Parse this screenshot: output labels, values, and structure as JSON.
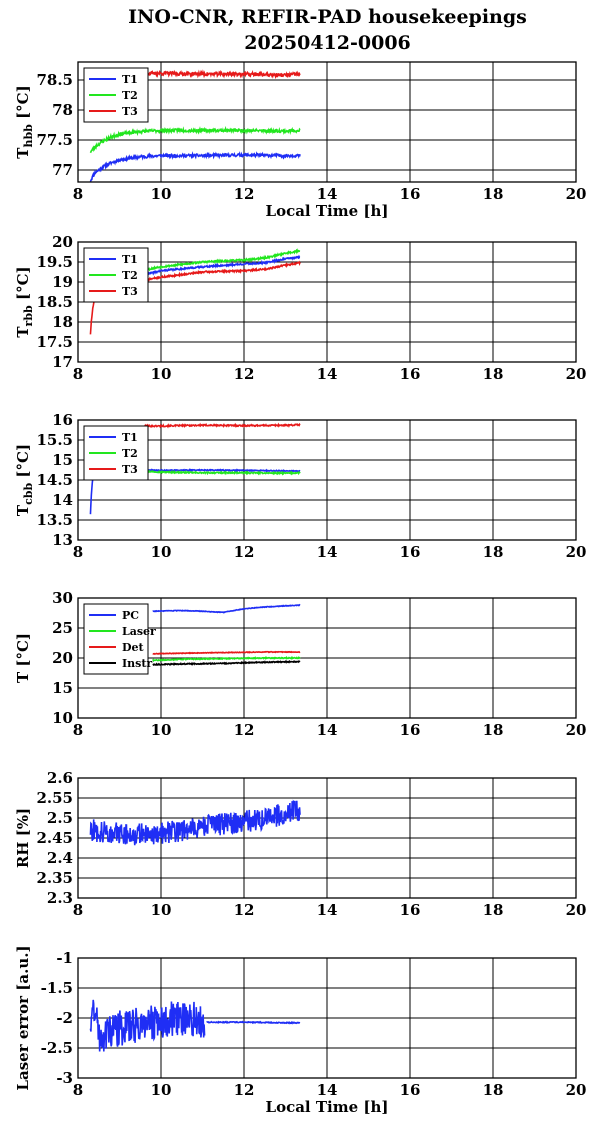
{
  "title": "INO-CNR, REFIR-PAD housekeepings",
  "subtitle": "20250412-0006",
  "colors": {
    "blue": "#1f2ef5",
    "green": "#22e61f",
    "red": "#e61a1a",
    "black": "#000000"
  },
  "chart_data": [
    {
      "type": "line",
      "ylabel_main": "T",
      "ylabel_sub": "hbb",
      "ylabel_unit": " [°C]",
      "xlabel": "Local Time [h]",
      "xlim": [
        8,
        20
      ],
      "ylim": [
        76.8,
        78.8
      ],
      "xticks": [
        "8",
        "10",
        "12",
        "14",
        "16",
        "18",
        "20"
      ],
      "yticks": [
        {
          "v": 77,
          "label": "77"
        },
        {
          "v": 77.5,
          "label": "77.5"
        },
        {
          "v": 78,
          "label": "78"
        },
        {
          "v": 78.5,
          "label": "78.5"
        }
      ],
      "grid": true,
      "legend_position": "top-left",
      "series": [
        {
          "name": "T1",
          "color": "#1f2ef5",
          "noise": 0.025,
          "seed": 11,
          "points": [
            [
              8.3,
              76.82
            ],
            [
              8.4,
              76.95
            ],
            [
              8.6,
              77.05
            ],
            [
              8.8,
              77.12
            ],
            [
              9.0,
              77.17
            ],
            [
              9.5,
              77.22
            ],
            [
              10.0,
              77.24
            ],
            [
              11.0,
              77.24
            ],
            [
              12.0,
              77.25
            ],
            [
              13.0,
              77.24
            ],
            [
              13.35,
              77.24
            ]
          ]
        },
        {
          "name": "T2",
          "color": "#22e61f",
          "noise": 0.025,
          "seed": 23,
          "points": [
            [
              8.3,
              77.3
            ],
            [
              8.4,
              77.38
            ],
            [
              8.6,
              77.48
            ],
            [
              8.8,
              77.55
            ],
            [
              9.0,
              77.6
            ],
            [
              9.5,
              77.64
            ],
            [
              10.0,
              77.66
            ],
            [
              11.0,
              77.66
            ],
            [
              12.0,
              77.66
            ],
            [
              13.0,
              77.65
            ],
            [
              13.35,
              77.66
            ]
          ]
        },
        {
          "name": "T3",
          "color": "#e61a1a",
          "noise": 0.03,
          "seed": 37,
          "points": [
            [
              9.0,
              78.6
            ],
            [
              10.0,
              78.61
            ],
            [
              11.0,
              78.6
            ],
            [
              12.0,
              78.6
            ],
            [
              13.0,
              78.58
            ],
            [
              13.35,
              78.6
            ]
          ]
        }
      ]
    },
    {
      "type": "line",
      "ylabel_main": "T",
      "ylabel_sub": "rbb",
      "ylabel_unit": " [°C]",
      "xlabel": "",
      "xlim": [
        8,
        20
      ],
      "ylim": [
        17,
        20
      ],
      "xticks": [
        "8",
        "10",
        "12",
        "14",
        "16",
        "18",
        "20"
      ],
      "yticks": [
        {
          "v": 17,
          "label": "17"
        },
        {
          "v": 17.5,
          "label": "17.5"
        },
        {
          "v": 18,
          "label": "18"
        },
        {
          "v": 18.5,
          "label": "18.5"
        },
        {
          "v": 19,
          "label": "19"
        },
        {
          "v": 19.5,
          "label": "19.5"
        },
        {
          "v": 20,
          "label": "20"
        }
      ],
      "grid": true,
      "legend_position": "top-left",
      "series": [
        {
          "name": "T1",
          "color": "#1f2ef5",
          "noise": 0.02,
          "seed": 41,
          "points": [
            [
              9.6,
              19.18
            ],
            [
              10.0,
              19.28
            ],
            [
              11.0,
              19.38
            ],
            [
              12.0,
              19.45
            ],
            [
              12.5,
              19.48
            ],
            [
              13.0,
              19.58
            ],
            [
              13.35,
              19.62
            ]
          ]
        },
        {
          "name": "T2",
          "color": "#22e61f",
          "noise": 0.02,
          "seed": 53,
          "points": [
            [
              9.6,
              19.3
            ],
            [
              10.0,
              19.38
            ],
            [
              11.0,
              19.5
            ],
            [
              12.0,
              19.55
            ],
            [
              12.5,
              19.6
            ],
            [
              13.0,
              19.72
            ],
            [
              13.35,
              19.78
            ]
          ]
        },
        {
          "name": "T3",
          "color": "#e61a1a",
          "noise": 0.02,
          "seed": 67,
          "points": [
            [
              8.3,
              17.7
            ],
            [
              8.32,
              18.0
            ],
            [
              8.35,
              18.3
            ],
            [
              8.38,
              18.5
            ],
            [
              8.4,
              18.55
            ]
          ]
        },
        {
          "name": "",
          "color": "#e61a1a",
          "noise": 0.02,
          "seed": 71,
          "points": [
            [
              9.6,
              19.05
            ],
            [
              10.0,
              19.12
            ],
            [
              11.0,
              19.25
            ],
            [
              12.0,
              19.28
            ],
            [
              12.5,
              19.32
            ],
            [
              13.0,
              19.42
            ],
            [
              13.35,
              19.48
            ]
          ]
        }
      ]
    },
    {
      "type": "line",
      "ylabel_main": "T",
      "ylabel_sub": "cbb",
      "ylabel_unit": " [°C]",
      "xlabel": "",
      "xlim": [
        8,
        20
      ],
      "ylim": [
        13,
        16
      ],
      "xticks": [
        "8",
        "10",
        "12",
        "14",
        "16",
        "18",
        "20"
      ],
      "yticks": [
        {
          "v": 13,
          "label": "13"
        },
        {
          "v": 13.5,
          "label": "13.5"
        },
        {
          "v": 14,
          "label": "14"
        },
        {
          "v": 14.5,
          "label": "14.5"
        },
        {
          "v": 15,
          "label": "15"
        },
        {
          "v": 15.5,
          "label": "15.5"
        },
        {
          "v": 16,
          "label": "16"
        }
      ],
      "grid": true,
      "legend_position": "top-left",
      "series": [
        {
          "name": "T1",
          "color": "#1f2ef5",
          "noise": 0.012,
          "seed": 83,
          "points": [
            [
              8.3,
              13.65
            ],
            [
              8.32,
              14.1
            ],
            [
              8.35,
              14.5
            ],
            [
              8.4,
              14.7
            ]
          ]
        },
        {
          "name": "",
          "color": "#1f2ef5",
          "noise": 0.012,
          "seed": 89,
          "points": [
            [
              9.6,
              14.75
            ],
            [
              10.0,
              14.74
            ],
            [
              11.0,
              14.75
            ],
            [
              12.0,
              14.74
            ],
            [
              13.0,
              14.73
            ],
            [
              13.35,
              14.72
            ]
          ]
        },
        {
          "name": "T2",
          "color": "#22e61f",
          "noise": 0.015,
          "seed": 97,
          "points": [
            [
              9.6,
              14.72
            ],
            [
              10.0,
              14.7
            ],
            [
              11.0,
              14.68
            ],
            [
              12.0,
              14.68
            ],
            [
              13.0,
              14.67
            ],
            [
              13.35,
              14.68
            ]
          ]
        },
        {
          "name": "T3",
          "color": "#e61a1a",
          "noise": 0.018,
          "seed": 101,
          "points": [
            [
              9.6,
              15.85
            ],
            [
              10.0,
              15.85
            ],
            [
              11.0,
              15.87
            ],
            [
              12.0,
              15.86
            ],
            [
              13.0,
              15.87
            ],
            [
              13.35,
              15.88
            ]
          ]
        }
      ]
    },
    {
      "type": "line",
      "ylabel_main": "T [°C]",
      "ylabel_sub": "",
      "ylabel_unit": "",
      "xlabel": "",
      "xlim": [
        8,
        20
      ],
      "ylim": [
        10,
        30
      ],
      "xticks": [
        "8",
        "10",
        "12",
        "14",
        "16",
        "18",
        "20"
      ],
      "yticks": [
        {
          "v": 10,
          "label": "10"
        },
        {
          "v": 15,
          "label": "15"
        },
        {
          "v": 20,
          "label": "20"
        },
        {
          "v": 25,
          "label": "25"
        },
        {
          "v": 30,
          "label": "30"
        }
      ],
      "grid": true,
      "legend_position": "top-left",
      "series": [
        {
          "name": "PC",
          "color": "#1f2ef5",
          "noise": 0.05,
          "seed": 103,
          "points": [
            [
              9.8,
              27.8
            ],
            [
              10.5,
              27.9
            ],
            [
              11.0,
              27.8
            ],
            [
              11.5,
              27.6
            ],
            [
              12.0,
              28.2
            ],
            [
              12.5,
              28.5
            ],
            [
              13.0,
              28.7
            ],
            [
              13.35,
              28.8
            ]
          ]
        },
        {
          "name": "Laser",
          "color": "#22e61f",
          "noise": 0.08,
          "seed": 107,
          "points": [
            [
              9.8,
              19.6
            ],
            [
              10.5,
              19.8
            ],
            [
              11.5,
              19.9
            ],
            [
              12.5,
              20.0
            ],
            [
              13.35,
              20.0
            ]
          ]
        },
        {
          "name": "Det",
          "color": "#e61a1a",
          "noise": 0.05,
          "seed": 109,
          "points": [
            [
              9.8,
              20.7
            ],
            [
              10.5,
              20.8
            ],
            [
              11.5,
              20.9
            ],
            [
              12.5,
              21.0
            ],
            [
              13.35,
              21.0
            ]
          ]
        },
        {
          "name": "Instr",
          "color": "#000000",
          "noise": 0.08,
          "seed": 113,
          "points": [
            [
              9.8,
              18.9
            ],
            [
              10.5,
              19.0
            ],
            [
              11.5,
              19.1
            ],
            [
              12.5,
              19.3
            ],
            [
              13.35,
              19.4
            ]
          ]
        }
      ]
    },
    {
      "type": "line",
      "ylabel_main": "RH [%]",
      "ylabel_sub": "",
      "ylabel_unit": "",
      "xlabel": "",
      "xlim": [
        8,
        20
      ],
      "ylim": [
        2.3,
        2.6
      ],
      "xticks": [
        "8",
        "10",
        "12",
        "14",
        "16",
        "18",
        "20"
      ],
      "yticks": [
        {
          "v": 2.3,
          "label": "2.3"
        },
        {
          "v": 2.35,
          "label": "2.35"
        },
        {
          "v": 2.4,
          "label": "2.4"
        },
        {
          "v": 2.45,
          "label": "2.45"
        },
        {
          "v": 2.5,
          "label": "2.5"
        },
        {
          "v": 2.55,
          "label": "2.55"
        },
        {
          "v": 2.6,
          "label": "2.6"
        }
      ],
      "grid": true,
      "legend_position": "",
      "series": [
        {
          "name": "",
          "color": "#1f2ef5",
          "noise": 0.028,
          "seed": 127,
          "points": [
            [
              8.3,
              2.47
            ],
            [
              9.0,
              2.46
            ],
            [
              10.0,
              2.46
            ],
            [
              11.0,
              2.48
            ],
            [
              12.0,
              2.49
            ],
            [
              12.5,
              2.5
            ],
            [
              13.0,
              2.51
            ],
            [
              13.35,
              2.52
            ]
          ]
        }
      ]
    },
    {
      "type": "line",
      "ylabel_main": "Laser error [a.u.]",
      "ylabel_sub": "",
      "ylabel_unit": "",
      "xlabel": "Local Time [h]",
      "xlim": [
        8,
        20
      ],
      "ylim": [
        -3,
        -1
      ],
      "xticks": [
        "8",
        "10",
        "12",
        "14",
        "16",
        "18",
        "20"
      ],
      "yticks": [
        {
          "v": -3,
          "label": "-3"
        },
        {
          "v": -2.5,
          "label": "-2.5"
        },
        {
          "v": -2,
          "label": "-2"
        },
        {
          "v": -1.5,
          "label": "-1.5"
        },
        {
          "v": -1,
          "label": "-1"
        }
      ],
      "grid": true,
      "legend_position": "",
      "series": [
        {
          "name": "",
          "color": "#1f2ef5",
          "noise": 0.3,
          "seed": 131,
          "points": [
            [
              8.3,
              -2.05
            ],
            [
              8.4,
              -1.8
            ],
            [
              8.5,
              -2.3
            ],
            [
              8.8,
              -2.2
            ],
            [
              9.5,
              -2.1
            ],
            [
              10.0,
              -2.05
            ],
            [
              10.5,
              -2.0
            ],
            [
              11.05,
              -2.05
            ]
          ]
        },
        {
          "name": "",
          "color": "#1f2ef5",
          "noise": 0.008,
          "seed": 137,
          "points": [
            [
              11.1,
              -2.07
            ],
            [
              12.0,
              -2.07
            ],
            [
              13.0,
              -2.08
            ],
            [
              13.35,
              -2.08
            ]
          ]
        }
      ]
    }
  ]
}
